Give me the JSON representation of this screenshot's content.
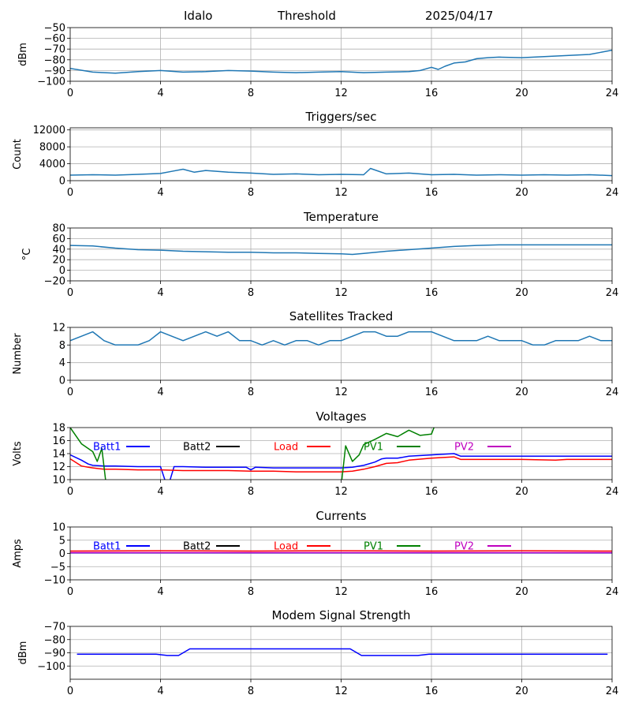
{
  "header": {
    "station": "Idalo",
    "mode": "Threshold",
    "date": "2025/04/17"
  },
  "chart_data": [
    {
      "id": "threshold",
      "type": "line",
      "title": "",
      "ylabel": "dBm",
      "xlim": [
        0,
        24
      ],
      "ylim": [
        -100,
        -50
      ],
      "xticks": [
        0,
        4,
        8,
        12,
        16,
        20,
        24
      ],
      "yticks": [
        -100,
        -90,
        -80,
        -70,
        -60,
        -50
      ],
      "grid": true,
      "color": "#1f77b4",
      "series": [
        {
          "x": [
            0,
            1,
            2,
            3,
            4,
            5,
            6,
            7,
            8,
            9,
            10,
            11,
            12,
            13,
            14,
            15,
            15.5,
            16,
            16.3,
            16.6,
            17,
            17.5,
            18,
            18.5,
            19,
            20,
            21,
            22,
            23,
            23.5,
            24
          ],
          "y": [
            -88,
            -91.5,
            -92.5,
            -91,
            -90,
            -91.5,
            -91,
            -90,
            -90.5,
            -91.5,
            -92,
            -91.5,
            -91,
            -92,
            -91.5,
            -91,
            -90,
            -87,
            -89,
            -86,
            -83,
            -82,
            -79,
            -78,
            -77.5,
            -78,
            -77,
            -76,
            -75,
            -73,
            -71
          ]
        }
      ]
    },
    {
      "id": "triggers",
      "type": "line",
      "title": "Triggers/sec",
      "ylabel": "Count",
      "xlim": [
        0,
        24
      ],
      "ylim": [
        0,
        12500
      ],
      "xticks": [
        0,
        4,
        8,
        12,
        16,
        20,
        24
      ],
      "yticks": [
        0,
        4000,
        8000,
        12000
      ],
      "grid": true,
      "color": "#1f77b4",
      "series": [
        {
          "x": [
            0,
            1,
            2,
            3,
            4,
            4.5,
            5,
            5.5,
            6,
            7,
            8,
            9,
            10,
            11,
            12,
            13,
            13.3,
            14,
            15,
            16,
            17,
            18,
            19,
            20,
            21,
            22,
            23,
            24
          ],
          "y": [
            1300,
            1400,
            1300,
            1500,
            1700,
            2200,
            2700,
            2000,
            2400,
            2000,
            1800,
            1500,
            1600,
            1400,
            1500,
            1400,
            2900,
            1600,
            1800,
            1400,
            1500,
            1300,
            1400,
            1300,
            1400,
            1300,
            1400,
            1200
          ]
        }
      ]
    },
    {
      "id": "temperature",
      "type": "line",
      "title": "Temperature",
      "ylabel": "°C",
      "xlim": [
        0,
        24
      ],
      "ylim": [
        -20,
        80
      ],
      "xticks": [
        0,
        4,
        8,
        12,
        16,
        20,
        24
      ],
      "yticks": [
        -20,
        0,
        20,
        40,
        60,
        80
      ],
      "grid": true,
      "color": "#1f77b4",
      "series": [
        {
          "x": [
            0,
            1,
            2,
            3,
            4,
            5,
            6,
            7,
            8,
            9,
            10,
            11,
            12,
            12.5,
            13,
            14,
            15,
            16,
            17,
            18,
            19,
            20,
            21,
            22,
            23,
            24
          ],
          "y": [
            47,
            46,
            42,
            39,
            38,
            36,
            35,
            34,
            34,
            33,
            33,
            32,
            31,
            30,
            32,
            36,
            39,
            42,
            45,
            47,
            48,
            48,
            48,
            48,
            48,
            48
          ]
        }
      ]
    },
    {
      "id": "satellites",
      "type": "line",
      "title": "Satellites Tracked",
      "ylabel": "Number",
      "xlim": [
        0,
        24
      ],
      "ylim": [
        0,
        12
      ],
      "xticks": [
        0,
        4,
        8,
        12,
        16,
        20,
        24
      ],
      "yticks": [
        0,
        4,
        8,
        12
      ],
      "grid": true,
      "color": "#1f77b4",
      "series": [
        {
          "x": [
            0,
            0.5,
            1,
            1.5,
            2,
            2.5,
            3,
            3.5,
            4,
            4.5,
            5,
            5.5,
            6,
            6.5,
            7,
            7.5,
            8,
            8.5,
            9,
            9.5,
            10,
            10.5,
            11,
            11.5,
            12,
            12.5,
            13,
            13.5,
            14,
            14.5,
            15,
            15.5,
            16,
            16.5,
            17,
            17.5,
            18,
            18.5,
            19,
            19.5,
            20,
            20.5,
            21,
            21.5,
            22,
            22.5,
            23,
            23.5,
            24
          ],
          "y": [
            9,
            10,
            11,
            9,
            8,
            8,
            8,
            9,
            11,
            10,
            9,
            10,
            11,
            10,
            11,
            9,
            9,
            8,
            9,
            8,
            9,
            9,
            8,
            9,
            9,
            10,
            11,
            11,
            10,
            10,
            11,
            11,
            11,
            10,
            9,
            9,
            9,
            10,
            9,
            9,
            9,
            8,
            8,
            9,
            9,
            9,
            10,
            9,
            9
          ]
        }
      ]
    },
    {
      "id": "voltages",
      "type": "line",
      "title": "Voltages",
      "ylabel": "Volts",
      "xlim": [
        0,
        24
      ],
      "ylim": [
        10,
        18
      ],
      "xticks": [
        0,
        4,
        8,
        12,
        16,
        20,
        24
      ],
      "yticks": [
        10,
        12,
        14,
        16,
        18
      ],
      "grid": true,
      "legend": "top, inline",
      "series": [
        {
          "name": "Batt1",
          "color": "#0000ff",
          "x": [
            0,
            0.5,
            0.8,
            1,
            1.5,
            2,
            3,
            3.5,
            4,
            4.2,
            4.4,
            4.6,
            5,
            6,
            7,
            7.8,
            8,
            8.2,
            9,
            10,
            11,
            12,
            12.5,
            13,
            13.5,
            13.8,
            14,
            14.5,
            15,
            16,
            17,
            17.3,
            18,
            20,
            22,
            24
          ],
          "y": [
            13.8,
            13,
            12.4,
            12.2,
            12.1,
            12.1,
            12.0,
            12.0,
            12.0,
            9.9,
            9.7,
            12.0,
            12.0,
            11.9,
            11.9,
            11.9,
            11.5,
            11.9,
            11.8,
            11.8,
            11.8,
            11.8,
            11.9,
            12.2,
            12.7,
            13.2,
            13.3,
            13.3,
            13.6,
            13.8,
            14.0,
            13.6,
            13.6,
            13.6,
            13.6,
            13.6
          ]
        },
        {
          "name": "Load",
          "color": "#ff0000",
          "x": [
            0,
            0.5,
            0.8,
            1,
            1.5,
            2,
            3,
            3.5,
            4,
            5,
            6,
            7,
            8,
            9,
            10,
            11,
            12,
            12.5,
            13,
            13.5,
            14,
            14.5,
            15,
            16,
            17,
            17.3,
            18,
            20,
            21.5,
            22,
            24
          ],
          "y": [
            13.2,
            12.1,
            11.9,
            11.8,
            11.6,
            11.6,
            11.5,
            11.5,
            11.5,
            11.4,
            11.4,
            11.4,
            11.3,
            11.3,
            11.2,
            11.2,
            11.2,
            11.3,
            11.6,
            12.0,
            12.5,
            12.6,
            13.0,
            13.3,
            13.5,
            13.1,
            13.1,
            13.1,
            13.0,
            13.1,
            13.1
          ]
        },
        {
          "name": "PV1",
          "color": "#008000",
          "x": [
            0,
            0.5,
            1,
            1.2,
            1.4,
            1.6,
            12,
            12.2,
            12.5,
            12.8,
            13,
            13.5,
            14,
            14.5,
            15,
            15.5,
            16,
            16.2
          ],
          "y": [
            18,
            15.5,
            14.3,
            12.8,
            14.8,
            9.0,
            9.0,
            15.2,
            12.8,
            13.8,
            15.4,
            16.2,
            17.1,
            16.6,
            17.6,
            16.8,
            17.0,
            18.8
          ]
        },
        {
          "name": "Batt2",
          "color": "#000000",
          "x": [],
          "y": []
        },
        {
          "name": "PV2",
          "color": "#bf00bf",
          "x": [],
          "y": []
        }
      ]
    },
    {
      "id": "currents",
      "type": "line",
      "title": "Currents",
      "ylabel": "Amps",
      "xlim": [
        0,
        24
      ],
      "ylim": [
        -10,
        10
      ],
      "xticks": [
        0,
        4,
        8,
        12,
        16,
        20,
        24
      ],
      "yticks": [
        -10,
        -5,
        0,
        5,
        10
      ],
      "grid": true,
      "legend": "top, inline",
      "series": [
        {
          "name": "Batt1",
          "color": "#0000ff",
          "x": [
            0,
            24
          ],
          "y": [
            0.2,
            0.2
          ]
        },
        {
          "name": "Load",
          "color": "#ff0000",
          "x": [
            0,
            4,
            8,
            12,
            16,
            20,
            24
          ],
          "y": [
            0.9,
            1.0,
            0.9,
            1.0,
            0.9,
            1.0,
            0.9
          ]
        },
        {
          "name": "PV1",
          "color": "#008000",
          "x": [],
          "y": []
        },
        {
          "name": "Batt2",
          "color": "#000000",
          "x": [],
          "y": []
        },
        {
          "name": "PV2",
          "color": "#bf00bf",
          "x": [
            0,
            24
          ],
          "y": [
            0.3,
            0.3
          ]
        }
      ]
    },
    {
      "id": "modem",
      "type": "line",
      "title": "Modem Signal Strength",
      "ylabel": "dBm",
      "xlim": [
        0,
        24
      ],
      "ylim": [
        -110,
        -70
      ],
      "xticks": [
        0,
        4,
        8,
        12,
        16,
        20,
        24
      ],
      "yticks": [
        -100,
        -90,
        -80,
        -70
      ],
      "grid": true,
      "series": [
        {
          "color": "#0000ff",
          "x": [
            0.3,
            3.8,
            4.3,
            4.8,
            5.3,
            12.4,
            12.9,
            15.4,
            15.9,
            23.8
          ],
          "y": [
            -91,
            -91,
            -92,
            -92,
            -87,
            -87,
            -92,
            -92,
            -91,
            -91
          ]
        }
      ]
    }
  ]
}
